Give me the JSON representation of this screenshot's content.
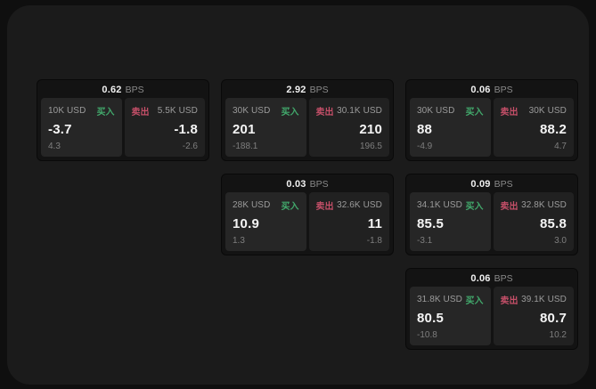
{
  "colors": {
    "buy_green": "#42a96c",
    "sell_red": "#c44f68",
    "page_bg": "#0f0f0f",
    "panel_bg": "#1b1b1b",
    "card_bg": "#131313",
    "buy_tile_bg": "#262626",
    "sell_tile_bg": "#212121"
  },
  "cards": [
    {
      "bps": "0.62",
      "bps_unit": "BPS",
      "buy": {
        "amount": "10K USD",
        "tag": "买入",
        "value": "-3.7",
        "sub": "4.3"
      },
      "sell": {
        "tag": "卖出",
        "amount": "5.5K USD",
        "value": "-1.8",
        "sub": "-2.6"
      }
    },
    {
      "bps": "2.92",
      "bps_unit": "BPS",
      "buy": {
        "amount": "30K USD",
        "tag": "买入",
        "value": "201",
        "sub": "-188.1"
      },
      "sell": {
        "tag": "卖出",
        "amount": "30.1K USD",
        "value": "210",
        "sub": "196.5"
      }
    },
    {
      "bps": "0.06",
      "bps_unit": "BPS",
      "buy": {
        "amount": "30K USD",
        "tag": "买入",
        "value": "88",
        "sub": "-4.9"
      },
      "sell": {
        "tag": "卖出",
        "amount": "30K USD",
        "value": "88.2",
        "sub": "4.7"
      }
    },
    {
      "bps": "0.03",
      "bps_unit": "BPS",
      "buy": {
        "amount": "28K USD",
        "tag": "买入",
        "value": "10.9",
        "sub": "1.3"
      },
      "sell": {
        "tag": "卖出",
        "amount": "32.6K USD",
        "value": "11",
        "sub": "-1.8"
      }
    },
    {
      "bps": "0.09",
      "bps_unit": "BPS",
      "buy": {
        "amount": "34.1K USD",
        "tag": "买入",
        "value": "85.5",
        "sub": "-3.1"
      },
      "sell": {
        "tag": "卖出",
        "amount": "32.8K USD",
        "value": "85.8",
        "sub": "3.0"
      }
    },
    {
      "bps": "0.06",
      "bps_unit": "BPS",
      "buy": {
        "amount": "31.8K USD",
        "tag": "买入",
        "value": "80.5",
        "sub": "-10.8"
      },
      "sell": {
        "tag": "卖出",
        "amount": "39.1K USD",
        "value": "80.7",
        "sub": "10.2"
      }
    }
  ]
}
